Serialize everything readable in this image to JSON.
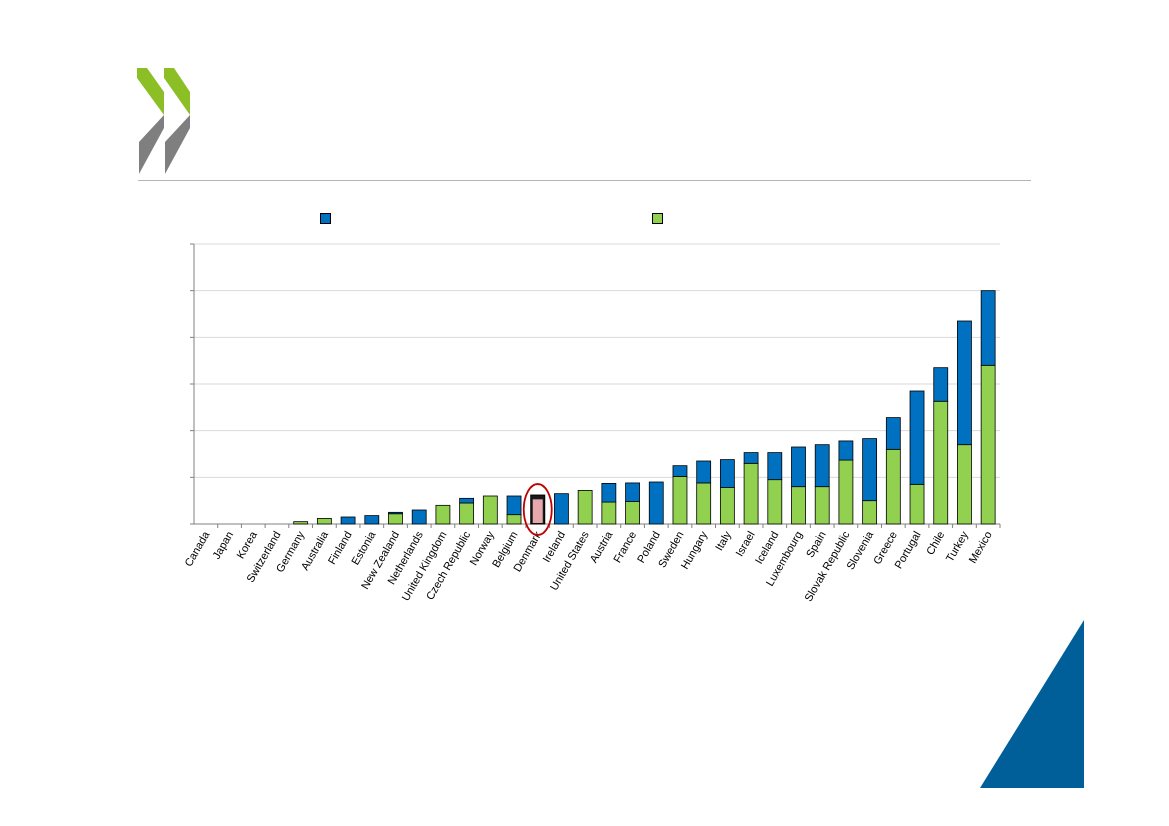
{
  "colors": {
    "series_a": "#0070c0",
    "series_b": "#92d050",
    "highlight_fill": "#e6a8ac",
    "highlight_ring": "#c00000",
    "logo_green": "#8cbe26",
    "logo_grey": "#7f7f7f",
    "corner_blue": "#005f99",
    "gridline": "#d9d9d9"
  },
  "chart_data": {
    "type": "bar",
    "stacked": true,
    "title": "",
    "xlabel": "",
    "ylabel": "",
    "ylim": [
      0,
      60
    ],
    "grid": true,
    "legend_placement": "top",
    "categories": [
      "Canada",
      "Japan",
      "Korea",
      "Switzerland",
      "Germany",
      "Australia",
      "Finland",
      "Estonia",
      "New Zealand",
      "Netherlands",
      "United Kingdom",
      "Czech Republic",
      "Norway",
      "Belgium",
      "Denmark",
      "Ireland",
      "United States",
      "Austria",
      "France",
      "Poland",
      "Sweden",
      "Hungary",
      "Italy",
      "Israel",
      "Iceland",
      "Luxembourg",
      "Spain",
      "Slovak Republic",
      "Slovenia",
      "Greece",
      "Portugal",
      "Chile",
      "Turkey",
      "Mexico"
    ],
    "highlight_category": "Denmark",
    "series": [
      {
        "name": "",
        "color_key": "series_b",
        "values": [
          0,
          0,
          0,
          0,
          0.5,
          1.2,
          0,
          0,
          2.2,
          0,
          4,
          4.5,
          6,
          2,
          5.5,
          0,
          7.2,
          4.7,
          4.8,
          0,
          10.2,
          8.8,
          7.8,
          13,
          9.5,
          8,
          8,
          13.7,
          5,
          16,
          8.5,
          26.3,
          17,
          34
        ]
      },
      {
        "name": "",
        "color_key": "series_a",
        "values": [
          0,
          0,
          0,
          0,
          0,
          0,
          1.5,
          1.8,
          0.3,
          3,
          0,
          1,
          0,
          4,
          0.7,
          6.5,
          0,
          4,
          4,
          9,
          2.3,
          4.7,
          6,
          2.3,
          5.8,
          8.5,
          9,
          4.1,
          13.3,
          6.8,
          20,
          7.2,
          26.5,
          16
        ]
      }
    ]
  }
}
